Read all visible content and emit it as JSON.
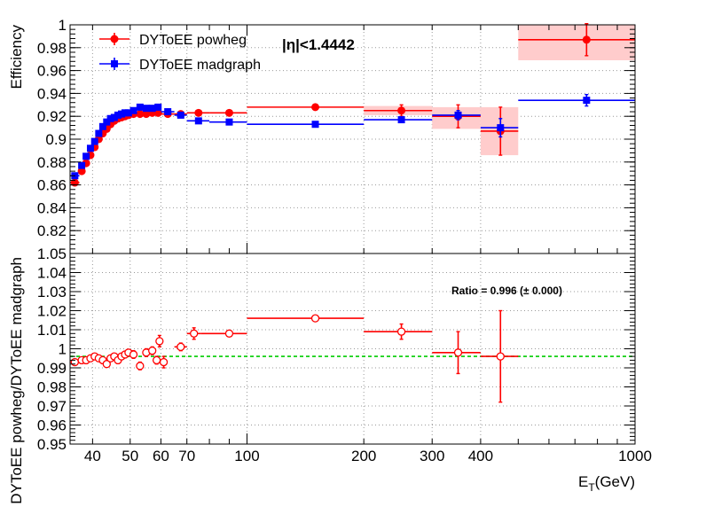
{
  "chart_data": [
    {
      "type": "scatter",
      "panel": "top",
      "title": "|η|<1.4442",
      "ylabel": "Efficiency",
      "xlabel": "",
      "x_scale": "log",
      "xlim": [
        35,
        1000
      ],
      "ylim": [
        0.8,
        1.0
      ],
      "y_ticks": [
        "1",
        "0.98",
        "0.96",
        "0.94",
        "0.92",
        "0.9",
        "0.88",
        "0.86",
        "0.84",
        "0.82"
      ],
      "grid": true,
      "legend": "top-left",
      "series": [
        {
          "name": "DYToEE powheg",
          "color": "#ff0000",
          "marker": "circle",
          "points": [
            {
              "x": 36,
              "xlo": 35,
              "xhi": 37,
              "y": 0.862,
              "err": 0.002
            },
            {
              "x": 37.5,
              "xlo": 37,
              "xhi": 38,
              "y": 0.872,
              "err": 0.002
            },
            {
              "x": 38.5,
              "xlo": 38,
              "xhi": 39,
              "y": 0.879,
              "err": 0.002
            },
            {
              "x": 39.5,
              "xlo": 39,
              "xhi": 40,
              "y": 0.886,
              "err": 0.002
            },
            {
              "x": 40.5,
              "xlo": 40,
              "xhi": 41,
              "y": 0.893,
              "err": 0.002
            },
            {
              "x": 41.5,
              "xlo": 41,
              "xhi": 42,
              "y": 0.9,
              "err": 0.002
            },
            {
              "x": 42.5,
              "xlo": 42,
              "xhi": 43,
              "y": 0.905,
              "err": 0.002
            },
            {
              "x": 43.5,
              "xlo": 43,
              "xhi": 44,
              "y": 0.909,
              "err": 0.002
            },
            {
              "x": 44.5,
              "xlo": 44,
              "xhi": 45,
              "y": 0.913,
              "err": 0.002
            },
            {
              "x": 45.5,
              "xlo": 45,
              "xhi": 46,
              "y": 0.916,
              "err": 0.002
            },
            {
              "x": 46.5,
              "xlo": 46,
              "xhi": 47,
              "y": 0.918,
              "err": 0.002
            },
            {
              "x": 47.5,
              "xlo": 47,
              "xhi": 48,
              "y": 0.919,
              "err": 0.002
            },
            {
              "x": 48.5,
              "xlo": 48,
              "xhi": 49,
              "y": 0.92,
              "err": 0.002
            },
            {
              "x": 49.5,
              "xlo": 49,
              "xhi": 50,
              "y": 0.921,
              "err": 0.002
            },
            {
              "x": 51,
              "xlo": 50,
              "xhi": 52,
              "y": 0.922,
              "err": 0.002
            },
            {
              "x": 53,
              "xlo": 52,
              "xhi": 54,
              "y": 0.922,
              "err": 0.002
            },
            {
              "x": 55,
              "xlo": 54,
              "xhi": 56,
              "y": 0.922,
              "err": 0.002
            },
            {
              "x": 57,
              "xlo": 56,
              "xhi": 58,
              "y": 0.923,
              "err": 0.002
            },
            {
              "x": 59,
              "xlo": 58,
              "xhi": 60,
              "y": 0.923,
              "err": 0.002
            },
            {
              "x": 62.5,
              "xlo": 60,
              "xhi": 65,
              "y": 0.922,
              "err": 0.002
            },
            {
              "x": 67.5,
              "xlo": 65,
              "xhi": 70,
              "y": 0.922,
              "err": 0.002
            },
            {
              "x": 75,
              "xlo": 70,
              "xhi": 80,
              "y": 0.923,
              "err": 0.002
            },
            {
              "x": 90,
              "xlo": 80,
              "xhi": 100,
              "y": 0.923,
              "err": 0.002
            },
            {
              "x": 150,
              "xlo": 100,
              "xhi": 200,
              "y": 0.928,
              "err": 0.002
            },
            {
              "x": 250,
              "xlo": 200,
              "xhi": 300,
              "y": 0.925,
              "err": 0.005
            },
            {
              "x": 350,
              "xlo": 300,
              "xhi": 400,
              "y": 0.92,
              "err": 0.01
            },
            {
              "x": 450,
              "xlo": 400,
              "xhi": 500,
              "y": 0.907,
              "err": 0.021
            },
            {
              "x": 750,
              "xlo": 500,
              "xhi": 1000,
              "y": 0.987,
              "err": 0.014
            }
          ]
        },
        {
          "name": "DYToEE madgraph",
          "color": "#0000ff",
          "marker": "square",
          "points": [
            {
              "x": 36,
              "xlo": 35,
              "xhi": 37,
              "y": 0.868,
              "err": 0.002
            },
            {
              "x": 37.5,
              "xlo": 37,
              "xhi": 38,
              "y": 0.877,
              "err": 0.002
            },
            {
              "x": 38.5,
              "xlo": 38,
              "xhi": 39,
              "y": 0.885,
              "err": 0.002
            },
            {
              "x": 39.5,
              "xlo": 39,
              "xhi": 40,
              "y": 0.892,
              "err": 0.002
            },
            {
              "x": 40.5,
              "xlo": 40,
              "xhi": 41,
              "y": 0.898,
              "err": 0.002
            },
            {
              "x": 41.5,
              "xlo": 41,
              "xhi": 42,
              "y": 0.905,
              "err": 0.002
            },
            {
              "x": 42.5,
              "xlo": 42,
              "xhi": 43,
              "y": 0.911,
              "err": 0.002
            },
            {
              "x": 43.5,
              "xlo": 43,
              "xhi": 44,
              "y": 0.915,
              "err": 0.002
            },
            {
              "x": 44.5,
              "xlo": 44,
              "xhi": 45,
              "y": 0.918,
              "err": 0.002
            },
            {
              "x": 45.5,
              "xlo": 45,
              "xhi": 46,
              "y": 0.919,
              "err": 0.002
            },
            {
              "x": 46.5,
              "xlo": 46,
              "xhi": 47,
              "y": 0.921,
              "err": 0.002
            },
            {
              "x": 47.5,
              "xlo": 47,
              "xhi": 48,
              "y": 0.922,
              "err": 0.002
            },
            {
              "x": 48.5,
              "xlo": 48,
              "xhi": 49,
              "y": 0.923,
              "err": 0.002
            },
            {
              "x": 49.5,
              "xlo": 49,
              "xhi": 50,
              "y": 0.923,
              "err": 0.002
            },
            {
              "x": 51,
              "xlo": 50,
              "xhi": 52,
              "y": 0.925,
              "err": 0.002
            },
            {
              "x": 53,
              "xlo": 52,
              "xhi": 54,
              "y": 0.928,
              "err": 0.002
            },
            {
              "x": 55,
              "xlo": 54,
              "xhi": 56,
              "y": 0.927,
              "err": 0.002
            },
            {
              "x": 57,
              "xlo": 56,
              "xhi": 58,
              "y": 0.927,
              "err": 0.002
            },
            {
              "x": 59,
              "xlo": 58,
              "xhi": 60,
              "y": 0.928,
              "err": 0.002
            },
            {
              "x": 62.5,
              "xlo": 60,
              "xhi": 65,
              "y": 0.924,
              "err": 0.002
            },
            {
              "x": 67.5,
              "xlo": 65,
              "xhi": 70,
              "y": 0.921,
              "err": 0.002
            },
            {
              "x": 75,
              "xlo": 70,
              "xhi": 80,
              "y": 0.916,
              "err": 0.002
            },
            {
              "x": 90,
              "xlo": 80,
              "xhi": 100,
              "y": 0.915,
              "err": 0.002
            },
            {
              "x": 150,
              "xlo": 100,
              "xhi": 200,
              "y": 0.913,
              "err": 0.002
            },
            {
              "x": 250,
              "xlo": 200,
              "xhi": 300,
              "y": 0.917,
              "err": 0.002
            },
            {
              "x": 350,
              "xlo": 300,
              "xhi": 400,
              "y": 0.921,
              "err": 0.004
            },
            {
              "x": 450,
              "xlo": 400,
              "xhi": 500,
              "y": 0.91,
              "err": 0.008
            },
            {
              "x": 750,
              "xlo": 500,
              "xhi": 1000,
              "y": 0.934,
              "err": 0.005
            }
          ]
        }
      ],
      "uncertainty_bands": [
        {
          "xlo": 200,
          "xhi": 300,
          "ylo": 0.921,
          "yhi": 0.929,
          "color": "#ffcccc"
        },
        {
          "xlo": 300,
          "xhi": 400,
          "ylo": 0.909,
          "yhi": 0.928,
          "color": "#ffcccc"
        },
        {
          "xlo": 400,
          "xhi": 500,
          "ylo": 0.886,
          "yhi": 0.928,
          "color": "#ffcccc"
        },
        {
          "xlo": 500,
          "xhi": 1000,
          "ylo": 0.969,
          "yhi": 1.0,
          "color": "#ffcccc"
        }
      ]
    },
    {
      "type": "scatter",
      "panel": "bottom",
      "ylabel": "DYToEE powheg/DYToEE madgraph",
      "xlabel": "E_T(GeV)",
      "x_scale": "log",
      "xlim": [
        35,
        1000
      ],
      "ylim": [
        0.95,
        1.05
      ],
      "x_ticks": [
        "40",
        "50",
        "60",
        "70",
        "100",
        "200",
        "300",
        "400",
        "1000"
      ],
      "y_ticks": [
        "1.05",
        "1.04",
        "1.03",
        "1.02",
        "1.01",
        "1",
        "0.99",
        "0.98",
        "0.97",
        "0.96",
        "0.95"
      ],
      "grid": true,
      "annotation": "Ratio = 0.996 (± 0.000)",
      "reference_line": {
        "y": 0.996,
        "color": "#00cc00",
        "style": "dashed"
      },
      "series": [
        {
          "name": "",
          "color": "#ff0000",
          "marker": "open-circle",
          "points": [
            {
              "x": 36,
              "xlo": 35,
              "xhi": 37,
              "y": 0.993,
              "err": 0.001
            },
            {
              "x": 37.5,
              "xlo": 37,
              "xhi": 38,
              "y": 0.994,
              "err": 0.001
            },
            {
              "x": 38.5,
              "xlo": 38,
              "xhi": 39,
              "y": 0.994,
              "err": 0.001
            },
            {
              "x": 39.5,
              "xlo": 39,
              "xhi": 40,
              "y": 0.995,
              "err": 0.001
            },
            {
              "x": 40.5,
              "xlo": 40,
              "xhi": 41,
              "y": 0.996,
              "err": 0.001
            },
            {
              "x": 41.5,
              "xlo": 41,
              "xhi": 42,
              "y": 0.995,
              "err": 0.001
            },
            {
              "x": 42.5,
              "xlo": 42,
              "xhi": 43,
              "y": 0.994,
              "err": 0.001
            },
            {
              "x": 43.5,
              "xlo": 43,
              "xhi": 44,
              "y": 0.992,
              "err": 0.001
            },
            {
              "x": 44.5,
              "xlo": 44,
              "xhi": 45,
              "y": 0.995,
              "err": 0.001
            },
            {
              "x": 45.5,
              "xlo": 45,
              "xhi": 46,
              "y": 0.996,
              "err": 0.001
            },
            {
              "x": 46.5,
              "xlo": 46,
              "xhi": 47,
              "y": 0.994,
              "err": 0.001
            },
            {
              "x": 47.5,
              "xlo": 47,
              "xhi": 48,
              "y": 0.996,
              "err": 0.001
            },
            {
              "x": 48.5,
              "xlo": 48,
              "xhi": 49,
              "y": 0.997,
              "err": 0.001
            },
            {
              "x": 49.5,
              "xlo": 49,
              "xhi": 50,
              "y": 0.998,
              "err": 0.001
            },
            {
              "x": 51,
              "xlo": 50,
              "xhi": 52,
              "y": 0.997,
              "err": 0.002
            },
            {
              "x": 53,
              "xlo": 52,
              "xhi": 54,
              "y": 0.991,
              "err": 0.002
            },
            {
              "x": 55,
              "xlo": 54,
              "xhi": 56,
              "y": 0.998,
              "err": 0.002
            },
            {
              "x": 57,
              "xlo": 56,
              "xhi": 58,
              "y": 0.999,
              "err": 0.002
            },
            {
              "x": 58.5,
              "xlo": 58,
              "xhi": 59,
              "y": 0.994,
              "err": 0.002
            },
            {
              "x": 59.5,
              "xlo": 59,
              "xhi": 60,
              "y": 1.004,
              "err": 0.003
            },
            {
              "x": 61,
              "xlo": 60,
              "xhi": 62,
              "y": 0.993,
              "err": 0.003
            },
            {
              "x": 67.5,
              "xlo": 65,
              "xhi": 70,
              "y": 1.001,
              "err": 0.002
            },
            {
              "x": 73,
              "xlo": 70,
              "xhi": 76,
              "y": 1.008,
              "err": 0.003
            },
            {
              "x": 90,
              "xlo": 76,
              "xhi": 100,
              "y": 1.008,
              "err": 0.001
            },
            {
              "x": 150,
              "xlo": 100,
              "xhi": 200,
              "y": 1.016,
              "err": 0.001
            },
            {
              "x": 250,
              "xlo": 200,
              "xhi": 300,
              "y": 1.009,
              "err": 0.004
            },
            {
              "x": 350,
              "xlo": 300,
              "xhi": 400,
              "y": 0.998,
              "err": 0.011
            },
            {
              "x": 450,
              "xlo": 400,
              "xhi": 500,
              "y": 0.996,
              "err": 0.024
            }
          ]
        }
      ]
    }
  ]
}
